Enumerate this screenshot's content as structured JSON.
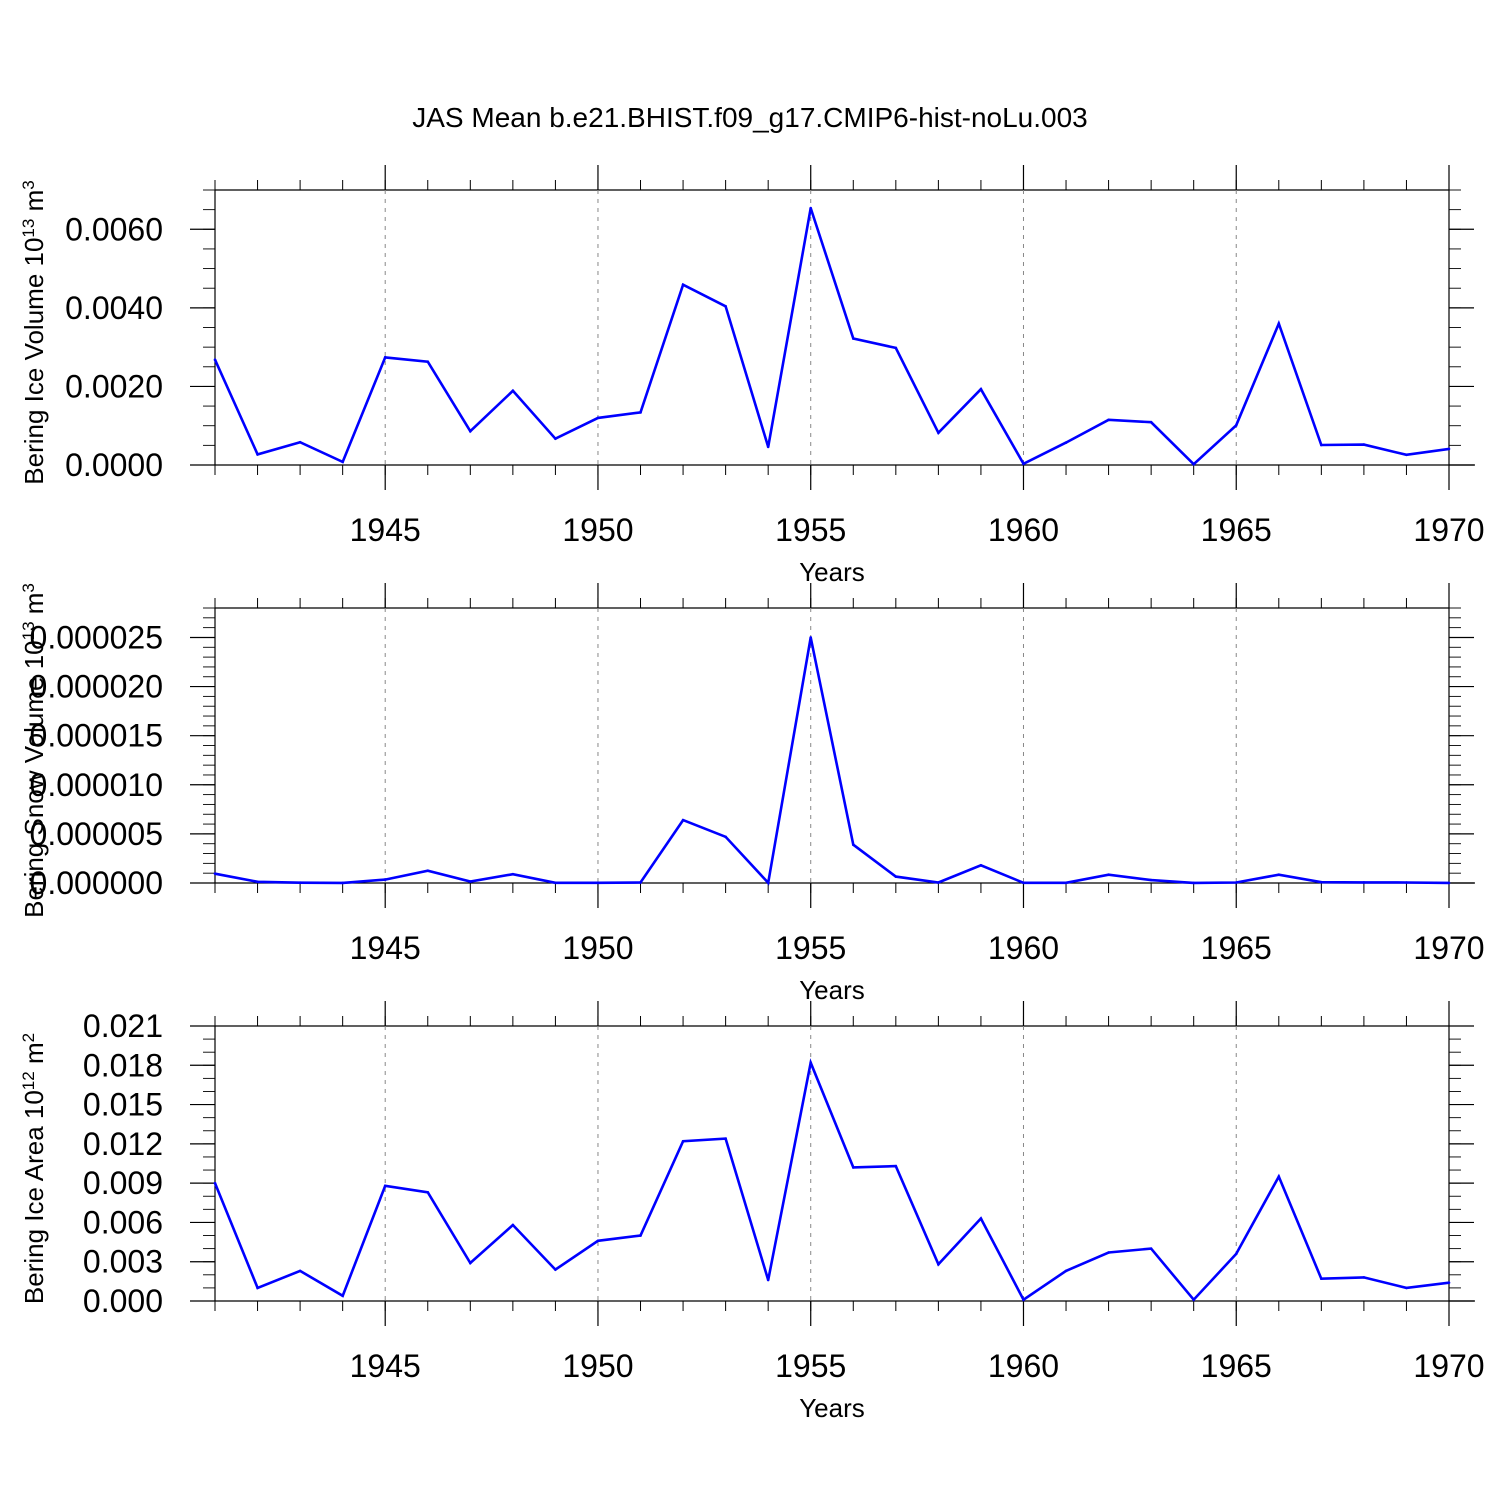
{
  "title": "JAS Mean b.e21.BHIST.f09_g17.CMIP6-hist-noLu.003",
  "colors": {
    "series": "#0000ff",
    "axis": "#000000",
    "grid": "#888888"
  },
  "chart_data": [
    {
      "type": "line",
      "title": "JAS Mean b.e21.BHIST.f09_g17.CMIP6-hist-noLu.003",
      "xlabel": "Years",
      "ylabel": "Bering Ice Volume 10",
      "ylabel_exp": "13",
      "ylabel_unit": " m",
      "ylabel_unit_exp": "3",
      "xlim": [
        1941,
        1970
      ],
      "ylim": [
        0,
        0.007
      ],
      "x_ticks": [
        1945,
        1950,
        1955,
        1960,
        1965,
        1970
      ],
      "y_ticks": [
        "0.0000",
        "0.0020",
        "0.0040",
        "0.0060"
      ],
      "y_tick_values": [
        0,
        0.002,
        0.004,
        0.006
      ],
      "y_minor_step": 0.0005,
      "x": [
        1941,
        1942,
        1943,
        1944,
        1945,
        1946,
        1947,
        1948,
        1949,
        1950,
        1951,
        1952,
        1953,
        1954,
        1955,
        1956,
        1957,
        1958,
        1959,
        1960,
        1961,
        1962,
        1963,
        1964,
        1965,
        1966,
        1967,
        1968,
        1969,
        1970
      ],
      "series": [
        {
          "name": "Bering Ice Volume",
          "values": [
            0.00268,
            0.00027,
            0.00058,
            8e-05,
            0.00274,
            0.00263,
            0.00086,
            0.00189,
            0.00067,
            0.0012,
            0.00134,
            0.00459,
            0.00404,
            0.00046,
            0.00654,
            0.00322,
            0.00298,
            0.00082,
            0.00193,
            3e-05,
            0.00057,
            0.00115,
            0.00109,
            2e-05,
            0.00101,
            0.0036,
            0.00051,
            0.00052,
            0.00026,
            0.00041
          ]
        }
      ]
    },
    {
      "type": "line",
      "xlabel": "Years",
      "ylabel": "Bering Snow Volume 10",
      "ylabel_exp": "13",
      "ylabel_unit": " m",
      "ylabel_unit_exp": "3",
      "xlim": [
        1941,
        1970
      ],
      "ylim": [
        0,
        2.8e-05
      ],
      "x_ticks": [
        1945,
        1950,
        1955,
        1960,
        1965,
        1970
      ],
      "y_ticks": [
        "0.000000",
        "0.000005",
        "0.000010",
        "0.000015",
        "0.000020",
        "0.000025"
      ],
      "y_tick_values": [
        0,
        5e-06,
        1e-05,
        1.5e-05,
        2e-05,
        2.5e-05
      ],
      "y_minor_step": 1e-06,
      "x": [
        1941,
        1942,
        1943,
        1944,
        1945,
        1946,
        1947,
        1948,
        1949,
        1950,
        1951,
        1952,
        1953,
        1954,
        1955,
        1956,
        1957,
        1958,
        1959,
        1960,
        1961,
        1962,
        1963,
        1964,
        1965,
        1966,
        1967,
        1968,
        1969,
        1970
      ],
      "series": [
        {
          "name": "Bering Snow Volume",
          "values": [
            9.5e-07,
            1.2e-07,
            3e-08,
            1e-08,
            3.5e-07,
            1.25e-06,
            1.5e-07,
            9e-07,
            2e-08,
            2e-08,
            5e-08,
            6.4e-06,
            4.7e-06,
            2e-08,
            2.5e-05,
            3.9e-06,
            6.5e-07,
            5e-08,
            1.8e-06,
            2e-08,
            2e-08,
            8.5e-07,
            3e-07,
            1e-08,
            5e-08,
            8.5e-07,
            8e-08,
            6e-08,
            5e-08,
            1e-08
          ]
        }
      ]
    },
    {
      "type": "line",
      "xlabel": "Years",
      "ylabel": "Bering Ice Area 10",
      "ylabel_exp": "12",
      "ylabel_unit": " m",
      "ylabel_unit_exp": "2",
      "xlim": [
        1941,
        1970
      ],
      "ylim": [
        0,
        0.021
      ],
      "x_ticks": [
        1945,
        1950,
        1955,
        1960,
        1965,
        1970
      ],
      "y_ticks": [
        "0.000",
        "0.003",
        "0.006",
        "0.009",
        "0.012",
        "0.015",
        "0.018",
        "0.021"
      ],
      "y_tick_values": [
        0,
        0.003,
        0.006,
        0.009,
        0.012,
        0.015,
        0.018,
        0.021
      ],
      "y_minor_step": 0.001,
      "x": [
        1941,
        1942,
        1943,
        1944,
        1945,
        1946,
        1947,
        1948,
        1949,
        1950,
        1951,
        1952,
        1953,
        1954,
        1955,
        1956,
        1957,
        1958,
        1959,
        1960,
        1961,
        1962,
        1963,
        1964,
        1965,
        1966,
        1967,
        1968,
        1969,
        1970
      ],
      "series": [
        {
          "name": "Bering Ice Area",
          "values": [
            0.009,
            0.001,
            0.0023,
            0.0004,
            0.0088,
            0.0083,
            0.0029,
            0.0058,
            0.0024,
            0.0046,
            0.005,
            0.0122,
            0.0124,
            0.0016,
            0.0182,
            0.0102,
            0.0103,
            0.0028,
            0.0063,
            0.0001,
            0.0023,
            0.0037,
            0.004,
            0.0001,
            0.0036,
            0.0095,
            0.0017,
            0.0018,
            0.001,
            0.0014
          ]
        }
      ]
    }
  ]
}
